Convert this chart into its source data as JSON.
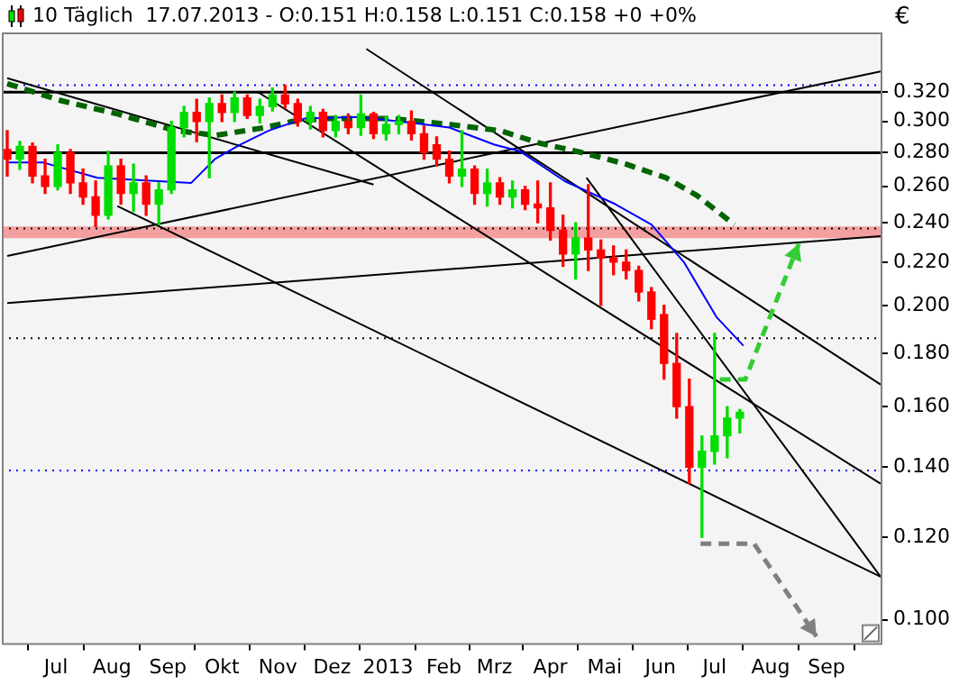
{
  "chart_data": {
    "type": "candlestick",
    "title": "10 Täglich  17.07.2013 - O:0.151 H:0.158 L:0.151 C:0.158 +0 +0%",
    "ylabel": "€",
    "x": [
      "2012-06-04",
      "2012-06-11",
      "2012-06-18",
      "2012-06-25",
      "2012-07-02",
      "2012-07-09",
      "2012-07-16",
      "2012-07-23",
      "2012-07-30",
      "2012-08-06",
      "2012-08-13",
      "2012-08-20",
      "2012-08-27",
      "2012-09-03",
      "2012-09-10",
      "2012-09-17",
      "2012-09-24",
      "2012-10-01",
      "2012-10-08",
      "2012-10-15",
      "2012-10-22",
      "2012-10-29",
      "2012-11-05",
      "2012-11-12",
      "2012-11-19",
      "2012-11-26",
      "2012-12-03",
      "2012-12-10",
      "2012-12-17",
      "2012-12-24",
      "2012-12-31",
      "2013-01-07",
      "2013-01-14",
      "2013-01-21",
      "2013-01-28",
      "2013-02-04",
      "2013-02-11",
      "2013-02-18",
      "2013-02-25",
      "2013-03-04",
      "2013-03-11",
      "2013-03-18",
      "2013-03-25",
      "2013-04-01",
      "2013-04-08",
      "2013-04-15",
      "2013-04-22",
      "2013-04-29",
      "2013-05-06",
      "2013-05-13",
      "2013-05-20",
      "2013-05-27",
      "2013-06-03",
      "2013-06-10",
      "2013-06-17",
      "2013-06-24",
      "2013-07-01",
      "2013-07-08",
      "2013-07-15"
    ],
    "ohlc": [
      [
        0.282,
        0.294,
        0.266,
        0.276
      ],
      [
        0.276,
        0.287,
        0.27,
        0.284
      ],
      [
        0.284,
        0.286,
        0.262,
        0.266
      ],
      [
        0.266,
        0.276,
        0.256,
        0.26
      ],
      [
        0.26,
        0.285,
        0.258,
        0.28
      ],
      [
        0.28,
        0.282,
        0.256,
        0.262
      ],
      [
        0.262,
        0.27,
        0.25,
        0.254
      ],
      [
        0.254,
        0.263,
        0.238,
        0.244
      ],
      [
        0.244,
        0.281,
        0.242,
        0.272
      ],
      [
        0.272,
        0.276,
        0.25,
        0.256
      ],
      [
        0.256,
        0.273,
        0.246,
        0.262
      ],
      [
        0.262,
        0.266,
        0.244,
        0.25
      ],
      [
        0.25,
        0.262,
        0.239,
        0.258
      ],
      [
        0.258,
        0.3,
        0.256,
        0.296
      ],
      [
        0.296,
        0.31,
        0.29,
        0.306
      ],
      [
        0.306,
        0.315,
        0.287,
        0.3
      ],
      [
        0.3,
        0.316,
        0.265,
        0.312
      ],
      [
        0.312,
        0.318,
        0.3,
        0.306
      ],
      [
        0.306,
        0.32,
        0.3,
        0.316
      ],
      [
        0.316,
        0.318,
        0.302,
        0.304
      ],
      [
        0.304,
        0.315,
        0.299,
        0.31
      ],
      [
        0.31,
        0.323,
        0.307,
        0.318
      ],
      [
        0.318,
        0.325,
        0.309,
        0.312
      ],
      [
        0.312,
        0.315,
        0.297,
        0.3
      ],
      [
        0.3,
        0.31,
        0.295,
        0.306
      ],
      [
        0.306,
        0.308,
        0.29,
        0.294
      ],
      [
        0.294,
        0.304,
        0.29,
        0.3
      ],
      [
        0.3,
        0.305,
        0.292,
        0.296
      ],
      [
        0.296,
        0.318,
        0.291,
        0.305
      ],
      [
        0.305,
        0.306,
        0.289,
        0.292
      ],
      [
        0.292,
        0.303,
        0.288,
        0.298
      ],
      [
        0.298,
        0.304,
        0.292,
        0.3
      ],
      [
        0.3,
        0.307,
        0.288,
        0.292
      ],
      [
        0.292,
        0.297,
        0.276,
        0.28
      ],
      [
        0.285,
        0.29,
        0.272,
        0.276
      ],
      [
        0.276,
        0.281,
        0.262,
        0.266
      ],
      [
        0.266,
        0.294,
        0.26,
        0.27
      ],
      [
        0.27,
        0.272,
        0.25,
        0.256
      ],
      [
        0.256,
        0.27,
        0.249,
        0.262
      ],
      [
        0.262,
        0.265,
        0.25,
        0.254
      ],
      [
        0.254,
        0.263,
        0.248,
        0.258
      ],
      [
        0.258,
        0.26,
        0.247,
        0.25
      ],
      [
        0.25,
        0.263,
        0.24,
        0.248
      ],
      [
        0.248,
        0.262,
        0.231,
        0.236
      ],
      [
        0.236,
        0.244,
        0.218,
        0.224
      ],
      [
        0.224,
        0.24,
        0.212,
        0.232
      ],
      [
        0.232,
        0.261,
        0.216,
        0.226
      ],
      [
        0.226,
        0.231,
        0.2,
        0.222
      ],
      [
        0.222,
        0.228,
        0.214,
        0.22
      ],
      [
        0.22,
        0.226,
        0.212,
        0.216
      ],
      [
        0.216,
        0.218,
        0.202,
        0.206
      ],
      [
        0.206,
        0.208,
        0.19,
        0.194
      ],
      [
        0.196,
        0.2,
        0.17,
        0.176
      ],
      [
        0.176,
        0.188,
        0.156,
        0.16
      ],
      [
        0.16,
        0.17,
        0.135,
        0.14
      ],
      [
        0.14,
        0.15,
        0.12,
        0.145
      ],
      [
        0.145,
        0.188,
        0.141,
        0.15
      ],
      [
        0.15,
        0.16,
        0.143,
        0.156
      ],
      [
        0.156,
        0.159,
        0.151,
        0.158
      ]
    ],
    "colors": [
      "#ff0000",
      "#00dd00",
      "#ff0000",
      "#ff0000",
      "#00dd00",
      "#ff0000",
      "#ff0000",
      "#ff0000",
      "#00dd00",
      "#ff0000",
      "#00dd00",
      "#ff0000",
      "#00dd00",
      "#00dd00",
      "#00dd00",
      "#ff0000",
      "#00dd00",
      "#ff0000",
      "#00dd00",
      "#ff0000",
      "#00dd00",
      "#00dd00",
      "#ff0000",
      "#ff0000",
      "#00dd00",
      "#ff0000",
      "#00dd00",
      "#ff0000",
      "#00dd00",
      "#ff0000",
      "#00dd00",
      "#00dd00",
      "#ff0000",
      "#ff0000",
      "#ff0000",
      "#ff0000",
      "#00dd00",
      "#ff0000",
      "#00dd00",
      "#ff0000",
      "#00dd00",
      "#ff0000",
      "#ff0000",
      "#ff0000",
      "#ff0000",
      "#00dd00",
      "#ff0000",
      "#ff0000",
      "#ff0000",
      "#ff0000",
      "#ff0000",
      "#ff0000",
      "#ff0000",
      "#ff0000",
      "#ff0000",
      "#00dd00",
      "#00dd00",
      "#00dd00",
      "#00dd00"
    ],
    "series": [
      {
        "type": "line",
        "color": "#0000ff",
        "x": [
          "2012-06-04",
          "2012-06-24",
          "2012-07-24",
          "2012-09-14",
          "2012-09-27",
          "2012-10-11",
          "2012-10-27",
          "2012-11-16",
          "2012-12-16",
          "2013-01-15",
          "2013-02-04",
          "2013-03-01",
          "2013-03-15",
          "2013-04-09",
          "2013-05-07",
          "2013-05-27",
          "2013-06-14",
          "2013-07-02",
          "2013-07-17"
        ],
        "values": [
          0.274,
          0.274,
          0.265,
          0.262,
          0.276,
          0.285,
          0.294,
          0.302,
          0.303,
          0.299,
          0.296,
          0.285,
          0.281,
          0.263,
          0.25,
          0.239,
          0.22,
          0.195,
          0.183
        ]
      },
      {
        "type": "line",
        "color": "#006400",
        "line_style": "dashed",
        "x": [
          "2012-06-04",
          "2012-07-04",
          "2012-08-04",
          "2012-09-05",
          "2012-09-28",
          "2012-10-25",
          "2012-11-09",
          "2012-11-29",
          "2013-01-02",
          "2013-02-04",
          "2013-03-04",
          "2013-03-26",
          "2013-04-19",
          "2013-05-13",
          "2013-06-04",
          "2013-06-21",
          "2013-07-12"
        ],
        "values": [
          0.326,
          0.314,
          0.305,
          0.294,
          0.291,
          0.296,
          0.3,
          0.302,
          0.302,
          0.298,
          0.294,
          0.286,
          0.28,
          0.273,
          0.265,
          0.255,
          0.239
        ]
      },
      {
        "type": "line",
        "color": "#000000",
        "x": [
          "2012-12-20",
          "2013-10-01"
        ],
        "values": [
          0.352,
          0.168
        ]
      },
      {
        "type": "line",
        "color": "#000000",
        "x": [
          "2012-10-21",
          "2013-10-01"
        ],
        "values": [
          0.32,
          0.135
        ]
      },
      {
        "type": "line",
        "color": "#000000",
        "x": [
          "2012-06-04",
          "2012-12-24"
        ],
        "values": [
          0.33,
          0.261
        ]
      },
      {
        "type": "line",
        "color": "#000000",
        "x": [
          "2012-08-04",
          "2013-10-01"
        ],
        "values": [
          0.249,
          0.11
        ]
      },
      {
        "type": "line",
        "color": "#000000",
        "x": [
          "2013-04-21",
          "2013-10-01"
        ],
        "values": [
          0.265,
          0.11
        ]
      },
      {
        "type": "line",
        "color": "#000000",
        "x": [
          "2012-06-04",
          "2013-10-01"
        ],
        "values": [
          0.223,
          0.335
        ]
      },
      {
        "type": "line",
        "color": "#000000",
        "x": [
          "2012-06-04",
          "2013-10-01"
        ],
        "values": [
          0.201,
          0.233
        ]
      }
    ],
    "ref_lines": [
      {
        "axis": "y",
        "value": 0.32,
        "color": "#000000"
      },
      {
        "axis": "y",
        "value": 0.28,
        "color": "#000000"
      },
      {
        "axis": "y",
        "value": 0.325,
        "color": "#0000ff",
        "line_style": "dotted"
      },
      {
        "axis": "y",
        "value": 0.237,
        "color": "#000000",
        "line_style": "dotted"
      },
      {
        "axis": "y",
        "value": 0.186,
        "color": "#000000",
        "line_style": "dotted"
      },
      {
        "axis": "y",
        "value": 0.139,
        "color": "#0000ff",
        "line_style": "dotted"
      }
    ],
    "bands": [
      {
        "axis": "y",
        "from": 0.232,
        "to": 0.238,
        "color": "#f4a0a0"
      }
    ],
    "log": "y",
    "marker": "none",
    "legend": false,
    "grid": false,
    "xlim": [
      "2012-06-01",
      "2013-10-01"
    ],
    "xticks": [
      {
        "value": "2012-07",
        "label": "Jul"
      },
      {
        "value": "2012-08",
        "label": "Aug"
      },
      {
        "value": "2012-09",
        "label": "Sep"
      },
      {
        "value": "2012-10",
        "label": "Okt"
      },
      {
        "value": "2012-11",
        "label": "Nov"
      },
      {
        "value": "2012-12",
        "label": "Dez"
      },
      {
        "value": "2013-01",
        "label": "2013"
      },
      {
        "value": "2013-02",
        "label": "Feb"
      },
      {
        "value": "2013-03",
        "label": "Mrz"
      },
      {
        "value": "2013-04",
        "label": "Apr"
      },
      {
        "value": "2013-05",
        "label": "Mai"
      },
      {
        "value": "2013-06",
        "label": "Jun"
      },
      {
        "value": "2013-07",
        "label": "Jul"
      },
      {
        "value": "2013-08",
        "label": "Aug"
      },
      {
        "value": "2013-09",
        "label": "Sep"
      }
    ],
    "ylim": [
      0.095,
      0.365
    ],
    "yticks": [
      {
        "value": 0.1,
        "label": "0.100"
      },
      {
        "value": 0.12,
        "label": "0.120"
      },
      {
        "value": 0.14,
        "label": "0.140"
      },
      {
        "value": 0.16,
        "label": "0.160"
      },
      {
        "value": 0.18,
        "label": "0.180"
      },
      {
        "value": 0.2,
        "label": "0.200"
      },
      {
        "value": 0.22,
        "label": "0.220"
      },
      {
        "value": 0.24,
        "label": "0.240"
      },
      {
        "value": 0.26,
        "label": "0.260"
      },
      {
        "value": 0.28,
        "label": "0.280"
      },
      {
        "value": 0.3,
        "label": "0.300"
      },
      {
        "value": 0.32,
        "label": "0.320"
      }
    ]
  }
}
